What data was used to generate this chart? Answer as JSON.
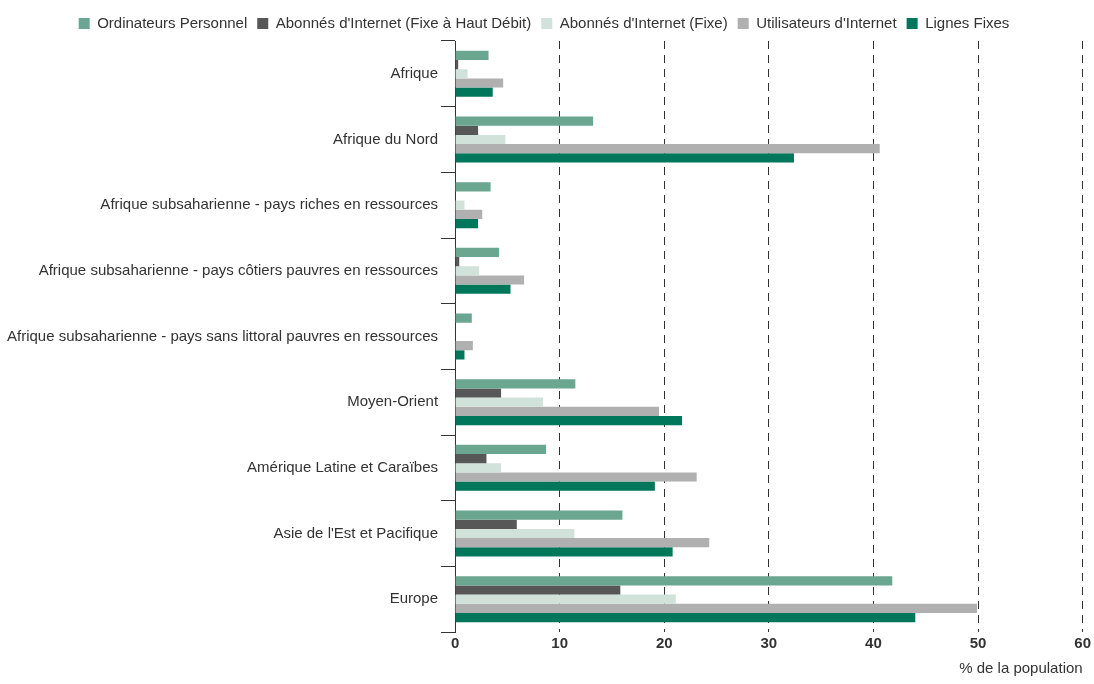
{
  "chart_data": {
    "type": "bar",
    "orientation": "horizontal",
    "xlabel": "% de la population",
    "categories": [
      "Afrique",
      "Afrique du Nord",
      "Afrique subsaharienne - pays riches en ressources",
      "Afrique subsaharienne - pays côtiers pauvres en ressources",
      "Afrique subsaharienne - pays sans littoral pauvres en ressources",
      "Moyen-Orient",
      "Amérique Latine et Caraïbes",
      "Asie de l'Est et Pacifique",
      "Europe"
    ],
    "series": [
      {
        "name": "Ordinateurs Personnel",
        "color": "#6aa690",
        "values": [
          3.2,
          13.2,
          3.4,
          4.2,
          1.6,
          11.5,
          8.7,
          16.0,
          41.8
        ]
      },
      {
        "name": "Abonnés d'Internet (Fixe à Haut Débit)",
        "color": "#575757",
        "values": [
          0.3,
          2.2,
          0,
          0.4,
          0,
          4.4,
          3.0,
          5.9,
          15.8
        ]
      },
      {
        "name": "Abonnés d'Internet (Fixe)",
        "color": "#d0e2da",
        "values": [
          1.2,
          4.8,
          0.9,
          2.3,
          null,
          8.4,
          4.4,
          11.4,
          21.1
        ]
      },
      {
        "name": "Utilisateurs d'Internet",
        "color": "#b0b0b0",
        "values": [
          4.6,
          40.6,
          2.6,
          6.6,
          1.7,
          19.5,
          23.1,
          24.3,
          49.9
        ]
      },
      {
        "name": "Lignes Fixes",
        "color": "#00765a",
        "values": [
          3.6,
          32.4,
          2.2,
          5.3,
          0.9,
          21.7,
          19.1,
          20.8,
          44.0
        ]
      }
    ],
    "xlim": [
      0,
      60
    ],
    "xticks": [
      0,
      10,
      20,
      30,
      40,
      50,
      60
    ],
    "grid": "x",
    "legend": "top"
  }
}
